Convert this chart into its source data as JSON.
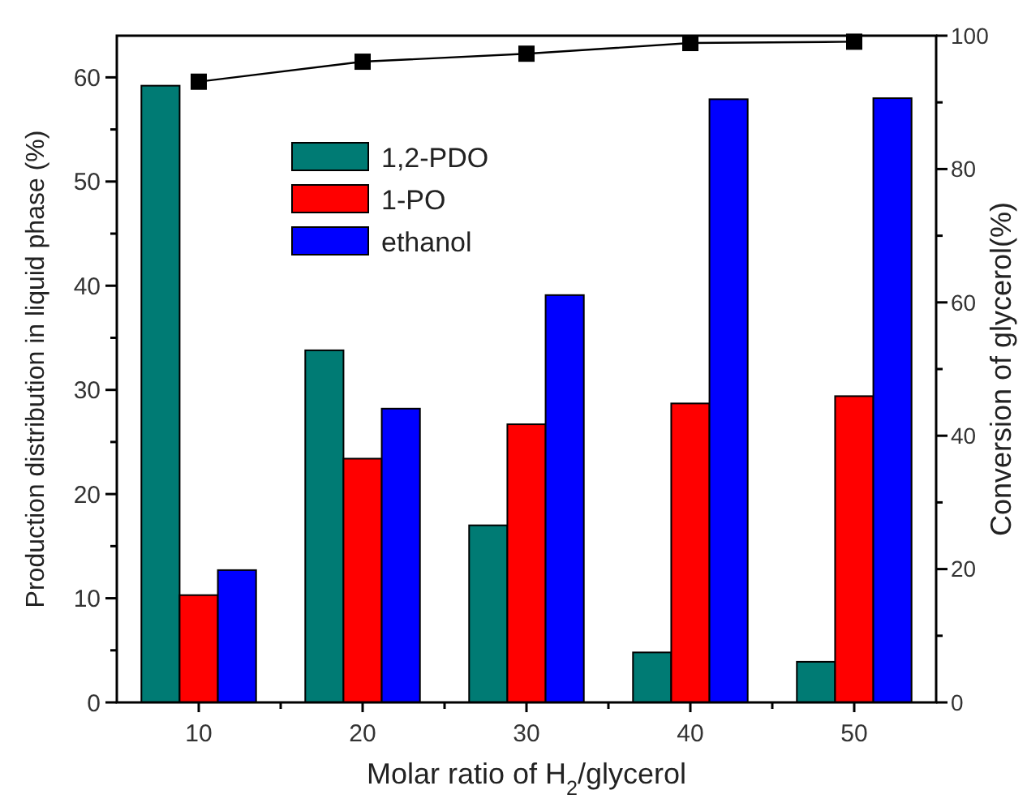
{
  "chart_data": {
    "type": "bar",
    "xlabel": "Molar ratio of H$_{2}$/glycerol",
    "ylabel": "Production distribution in liquid phase  (%)",
    "y2label": "Conversion of glycerol(%)",
    "categories": [
      "10",
      "20",
      "30",
      "40",
      "50"
    ],
    "series": [
      {
        "name": "1,2-PDO",
        "color": "#007b74",
        "values": [
          59.2,
          33.8,
          17.0,
          4.8,
          3.9
        ]
      },
      {
        "name": "1-PO",
        "color": "#ff0000",
        "values": [
          10.3,
          23.4,
          26.7,
          28.7,
          29.4
        ]
      },
      {
        "name": "ethanol",
        "color": "#0000ff",
        "values": [
          12.7,
          28.2,
          39.1,
          57.9,
          58.0
        ]
      },
      {
        "type": "line",
        "axis": "y2",
        "color": "#000000",
        "marker": "square",
        "values": [
          93.1,
          96.1,
          97.3,
          98.9,
          99.1
        ]
      }
    ],
    "ylim": [
      0,
      64
    ],
    "yticks": [
      0,
      {
        "value": 5,
        "label": null
      },
      10,
      {
        "value": 15,
        "label": null
      },
      20,
      {
        "value": 25,
        "label": null
      },
      30,
      {
        "value": 35,
        "label": null
      },
      40,
      {
        "value": 45,
        "label": null
      },
      50,
      {
        "value": 55,
        "label": null
      },
      60
    ],
    "y2lim": [
      0,
      100
    ],
    "y2ticks": [
      0,
      {
        "value": 10,
        "label": null
      },
      20,
      {
        "value": 30,
        "label": null
      },
      40,
      {
        "value": 50,
        "label": null
      },
      60,
      {
        "value": 70,
        "label": null
      },
      80,
      {
        "value": 90,
        "label": null
      },
      100
    ],
    "legend": "top left",
    "grid": false
  }
}
